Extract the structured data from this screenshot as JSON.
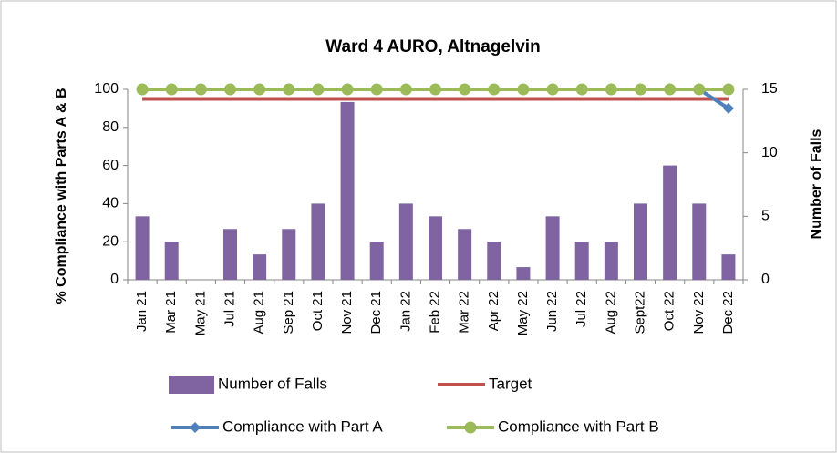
{
  "chart_data": {
    "type": "bar",
    "title": "Ward 4 AURO, Altnagelvin",
    "y_label": "% Compliance with Parts A & B",
    "y2_label": "Number of Falls",
    "categories": [
      "Jan 21",
      "Mar 21",
      "May 21",
      "Jul 21",
      "Aug 21",
      "Sep 21",
      "Oct 21",
      "Nov 21",
      "Dec 21",
      "Jan 22",
      "Feb 22",
      "Mar 22",
      "Apr 22",
      "May 22",
      "Jun 22",
      "Jul 22",
      "Aug 22",
      "Sept22",
      "Oct 22",
      "Nov 22",
      "Dec 22"
    ],
    "series": [
      {
        "name": "Number of Falls",
        "type": "bar",
        "axis": "y2",
        "color": "#8064a2",
        "values": [
          5,
          3,
          0,
          4,
          2,
          4,
          6,
          14,
          3,
          6,
          5,
          4,
          3,
          1,
          5,
          3,
          3,
          6,
          9,
          6,
          2
        ]
      },
      {
        "name": "Target",
        "type": "line",
        "color": "#c0504d",
        "values": [
          95,
          95,
          95,
          95,
          95,
          95,
          95,
          95,
          95,
          95,
          95,
          95,
          95,
          95,
          95,
          95,
          95,
          95,
          95,
          95,
          95
        ]
      },
      {
        "name": "Compliance with Part A",
        "type": "line",
        "color": "#4f81bd",
        "marker": "diamond",
        "values": [
          null,
          null,
          null,
          null,
          null,
          null,
          null,
          null,
          null,
          null,
          null,
          null,
          null,
          null,
          null,
          null,
          null,
          null,
          null,
          100,
          90
        ]
      },
      {
        "name": "Compliance with Part B",
        "type": "line",
        "color": "#9bbb59",
        "marker": "circle",
        "values": [
          100,
          100,
          100,
          100,
          100,
          100,
          100,
          100,
          100,
          100,
          100,
          100,
          100,
          100,
          100,
          100,
          100,
          100,
          100,
          100,
          100
        ]
      }
    ],
    "ylim": [
      0,
      100
    ],
    "yticks": [
      0,
      20,
      40,
      60,
      80,
      100
    ],
    "y2lim": [
      0,
      15
    ],
    "y2ticks": [
      0,
      5,
      10,
      15
    ],
    "grid": false
  }
}
